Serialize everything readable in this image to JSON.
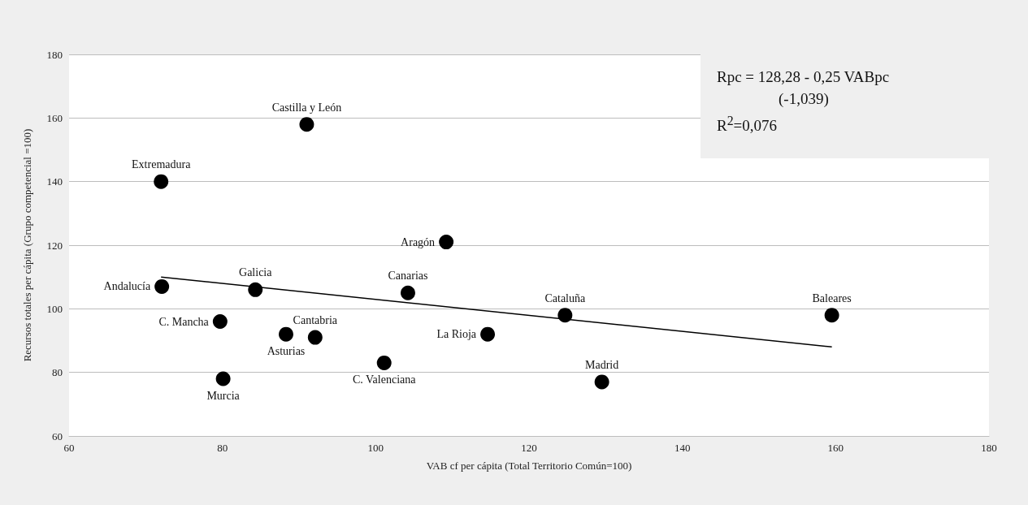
{
  "chart_data": {
    "type": "scatter",
    "xlabel": "VAB cf per cápita (Total Territorio Común=100)",
    "ylabel": "Recursos totales per cápita (Grupo competencial =100)",
    "xlim": [
      60,
      180
    ],
    "xticks": [
      60,
      80,
      100,
      120,
      140,
      160,
      180
    ],
    "ylim": [
      60,
      180
    ],
    "yticks": [
      60,
      80,
      100,
      120,
      140,
      160,
      180
    ],
    "grid": "y",
    "marker": "circle",
    "series": [
      {
        "color": "#000000",
        "x": [
          91,
          72,
          109.2,
          72.1,
          84.3,
          104.2,
          79.7,
          88.3,
          92.1,
          101.1,
          80.1,
          114.6,
          124.7,
          159.5,
          129.5
        ],
        "values": [
          158,
          140,
          121,
          107,
          106,
          105,
          96,
          92,
          91,
          83,
          78,
          92,
          98,
          98,
          77
        ]
      },
      {
        "type": "line",
        "color": "#000000",
        "marker": "none",
        "x": [
          72,
          159.5
        ],
        "values": [
          110,
          88
        ]
      }
    ],
    "annotations": [
      {
        "text": "Castilla y León",
        "x": 91,
        "y": 158
      },
      {
        "text": "Extremadura",
        "x": 72,
        "y": 140
      },
      {
        "text": "Aragón",
        "x": 109.2,
        "y": 121
      },
      {
        "text": "Andalucía",
        "x": 72.1,
        "y": 107
      },
      {
        "text": "Galicia",
        "x": 84.3,
        "y": 106
      },
      {
        "text": "Canarias",
        "x": 104.2,
        "y": 105
      },
      {
        "text": "C. Mancha",
        "x": 79.7,
        "y": 96
      },
      {
        "text": "Asturias",
        "x": 88.3,
        "y": 92
      },
      {
        "text": "Cantabria",
        "x": 92.1,
        "y": 91
      },
      {
        "text": "C. Valenciana",
        "x": 101.1,
        "y": 83
      },
      {
        "text": "Murcia",
        "x": 80.1,
        "y": 78
      },
      {
        "text": "La Rioja",
        "x": 114.6,
        "y": 92
      },
      {
        "text": "Cataluña",
        "x": 124.7,
        "y": 98
      },
      {
        "text": "Baleares",
        "x": 159.5,
        "y": 98
      },
      {
        "text": "Madrid",
        "x": 129.5,
        "y": 77
      },
      "Rpc = 128,28 - 0,25 VABpc\n                (-1,039)\nR$^{2}$=0,076"
    ]
  }
}
